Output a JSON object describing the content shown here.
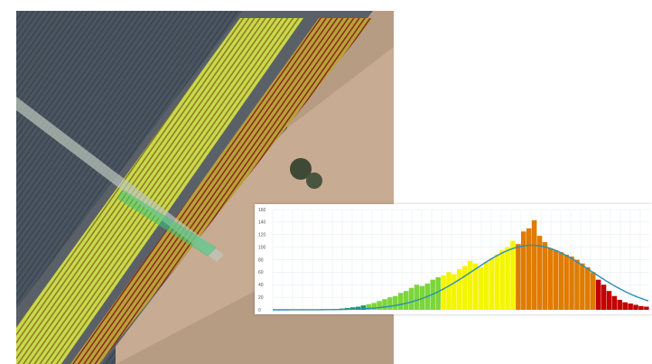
{
  "map": {
    "description_icon": "aerial-field-map"
  },
  "colors": {
    "ndvi_low": "#c30000",
    "ndvi_mid_low": "#e07b00",
    "ndvi_mid": "#f5f500",
    "ndvi_mid_high": "#7cd63a",
    "ndvi_high": "#1c9a52",
    "curve": "#2a8fb8",
    "grid": "#e3e9f0"
  },
  "chart_data": {
    "type": "bar",
    "title": "",
    "xlabel": "",
    "ylabel": "",
    "ylim": [
      0,
      160
    ],
    "yticks": [
      "0",
      "20",
      "40",
      "60",
      "80",
      "100",
      "120",
      "140",
      "160"
    ],
    "grid": true,
    "overlay": "normal-distribution-curve",
    "bins": [
      {
        "v": 1,
        "c": "high"
      },
      {
        "v": 2,
        "c": "high"
      },
      {
        "v": 3,
        "c": "high"
      },
      {
        "v": 4,
        "c": "high"
      },
      {
        "v": 5,
        "c": "high"
      },
      {
        "v": 7,
        "c": "high"
      },
      {
        "v": 9,
        "c": "mid_high"
      },
      {
        "v": 11,
        "c": "mid_high"
      },
      {
        "v": 14,
        "c": "mid_high"
      },
      {
        "v": 17,
        "c": "mid_high"
      },
      {
        "v": 20,
        "c": "mid_high"
      },
      {
        "v": 22,
        "c": "mid_high"
      },
      {
        "v": 27,
        "c": "mid_high"
      },
      {
        "v": 30,
        "c": "mid_high"
      },
      {
        "v": 35,
        "c": "mid_high"
      },
      {
        "v": 40,
        "c": "mid_high"
      },
      {
        "v": 38,
        "c": "mid_high"
      },
      {
        "v": 42,
        "c": "mid_high"
      },
      {
        "v": 48,
        "c": "mid_high"
      },
      {
        "v": 52,
        "c": "mid_high"
      },
      {
        "v": 55,
        "c": "mid"
      },
      {
        "v": 60,
        "c": "mid"
      },
      {
        "v": 57,
        "c": "mid"
      },
      {
        "v": 65,
        "c": "mid"
      },
      {
        "v": 70,
        "c": "mid"
      },
      {
        "v": 78,
        "c": "mid"
      },
      {
        "v": 74,
        "c": "mid"
      },
      {
        "v": 68,
        "c": "mid"
      },
      {
        "v": 76,
        "c": "mid"
      },
      {
        "v": 82,
        "c": "mid"
      },
      {
        "v": 88,
        "c": "mid"
      },
      {
        "v": 95,
        "c": "mid"
      },
      {
        "v": 100,
        "c": "mid"
      },
      {
        "v": 110,
        "c": "mid"
      },
      {
        "v": 105,
        "c": "mid_low"
      },
      {
        "v": 125,
        "c": "mid_low"
      },
      {
        "v": 130,
        "c": "mid_low"
      },
      {
        "v": 143,
        "c": "mid_low"
      },
      {
        "v": 118,
        "c": "mid_low"
      },
      {
        "v": 108,
        "c": "mid_low"
      },
      {
        "v": 98,
        "c": "mid_low"
      },
      {
        "v": 95,
        "c": "mid_low"
      },
      {
        "v": 92,
        "c": "mid_low"
      },
      {
        "v": 88,
        "c": "mid_low"
      },
      {
        "v": 85,
        "c": "mid_low"
      },
      {
        "v": 80,
        "c": "mid_low"
      },
      {
        "v": 74,
        "c": "mid_low"
      },
      {
        "v": 68,
        "c": "mid_low"
      },
      {
        "v": 60,
        "c": "mid_low"
      },
      {
        "v": 48,
        "c": "low"
      },
      {
        "v": 40,
        "c": "low"
      },
      {
        "v": 30,
        "c": "low"
      },
      {
        "v": 22,
        "c": "low"
      },
      {
        "v": 16,
        "c": "low"
      },
      {
        "v": 12,
        "c": "low"
      },
      {
        "v": 10,
        "c": "low"
      },
      {
        "v": 8,
        "c": "low"
      },
      {
        "v": 6,
        "c": "low"
      },
      {
        "v": 5,
        "c": "low"
      }
    ],
    "curve": {
      "peak": 103,
      "mean_bin": 37,
      "sd_bins": 11
    }
  }
}
